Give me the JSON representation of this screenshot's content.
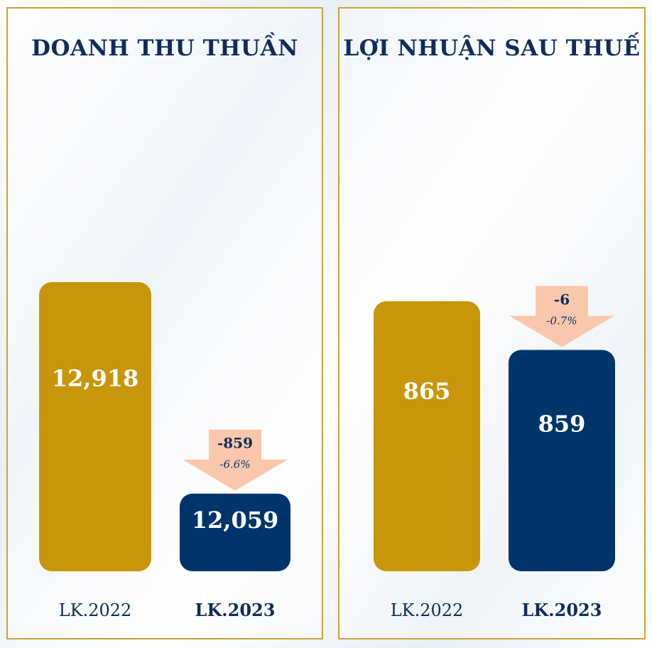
{
  "colors": {
    "gold": "#c8960a",
    "navy": "#00356b",
    "arrow": "#f9c8ac",
    "border": "#c9a33a",
    "text": "#0f2d5c"
  },
  "chart_data": [
    {
      "type": "bar",
      "title": "DOANH THU THUẦN",
      "categories": [
        "LK.2022",
        "LK.2023"
      ],
      "values": [
        12918,
        12059
      ],
      "value_labels": [
        "12,918",
        "12,059"
      ],
      "bar_colors": [
        "#c8960a",
        "#00356b"
      ],
      "delta": {
        "value": "-859",
        "percent": "-6.6%"
      }
    },
    {
      "type": "bar",
      "title": "LỢI NHUẬN SAU THUẾ",
      "categories": [
        "LK.2022",
        "LK.2023"
      ],
      "values": [
        865,
        859
      ],
      "value_labels": [
        "865",
        "859"
      ],
      "bar_colors": [
        "#c8960a",
        "#00356b"
      ],
      "delta": {
        "value": "-6",
        "percent": "-0.7%"
      }
    }
  ]
}
